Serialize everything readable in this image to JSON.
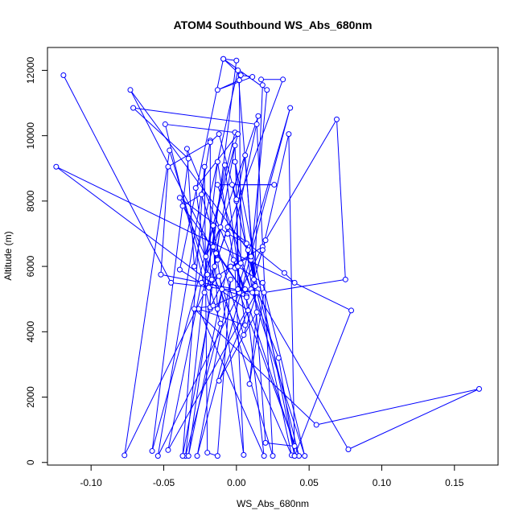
{
  "chart_data": {
    "type": "line",
    "title": "ATOM4 Southbound WS_Abs_680nm",
    "xlabel": "WS_Abs_680nm",
    "ylabel": "Altitude (m)",
    "xlim": [
      -0.13,
      0.18
    ],
    "ylim": [
      -80,
      12700
    ],
    "x_ticks": [
      -0.1,
      -0.05,
      0.0,
      0.05,
      0.1,
      0.15
    ],
    "x_tick_labels": [
      "-0.10",
      "-0.05",
      "0.00",
      "0.05",
      "0.10",
      "0.15"
    ],
    "y_ticks": [
      0,
      2000,
      4000,
      6000,
      8000,
      10000,
      12000
    ],
    "y_tick_labels": [
      "0",
      "2000",
      "4000",
      "6000",
      "8000",
      "10000",
      "12000"
    ],
    "grid": false,
    "line_color": "#0000ff",
    "marker": "open-circle",
    "series": [
      {
        "points": [
          [
            -0.119,
            11850
          ],
          [
            -0.045,
            5500
          ],
          [
            0.012,
            5200
          ],
          [
            0.018,
            11550
          ],
          [
            0.017,
            11720
          ],
          [
            0.032,
            11720
          ],
          [
            -0.022,
            5200
          ],
          [
            -0.077,
            220
          ],
          [
            -0.046,
            9550
          ],
          [
            -0.011,
            4250
          ],
          [
            -0.035,
            200
          ],
          [
            -0.013,
            9200
          ],
          [
            -0.001,
            5950
          ],
          [
            0.005,
            230
          ],
          [
            -0.013,
            6200
          ],
          [
            -0.073,
            11400
          ],
          [
            0.008,
            6500
          ],
          [
            0.038,
            220
          ],
          [
            -0.039,
            8100
          ],
          [
            -0.006,
            7000
          ],
          [
            0.007,
            6700
          ],
          [
            0.015,
            5300
          ],
          [
            -0.047,
            380
          ],
          [
            -0.024,
            5500
          ],
          [
            0.015,
            10600
          ],
          [
            -0.033,
            200
          ],
          [
            -0.011,
            7200
          ],
          [
            -0.021,
            6300
          ],
          [
            -0.001,
            10100
          ],
          [
            -0.049,
            10350
          ],
          [
            -0.018,
            4700
          ],
          [
            -0.018,
            9850
          ],
          [
            -0.054,
            200
          ],
          [
            0.018,
            6600
          ],
          [
            -0.017,
            5600
          ],
          [
            -0.014,
            6400
          ],
          [
            -0.001,
            9700
          ],
          [
            0.002,
            5200
          ],
          [
            0.043,
            200
          ],
          [
            0.01,
            6200
          ],
          [
            0.021,
            11400
          ],
          [
            -0.009,
            12350
          ],
          [
            -0.039,
            5900
          ],
          [
            -0.019,
            5350
          ],
          [
            -0.012,
            5700
          ],
          [
            0.025,
            200
          ],
          [
            0.014,
            10350
          ],
          [
            -0.071,
            10850
          ],
          [
            -0.033,
            9300
          ],
          [
            -0.058,
            350
          ],
          [
            0.001,
            10050
          ],
          [
            -0.028,
            8400
          ],
          [
            -0.02,
            5750
          ],
          [
            -0.008,
            9100
          ],
          [
            0.006,
            4200
          ],
          [
            -0.026,
            4700
          ],
          [
            0.019,
            200
          ],
          [
            0.006,
            5300
          ],
          [
            -0.034,
            9600
          ],
          [
            -0.029,
            6000
          ],
          [
            0.001,
            12000
          ],
          [
            0.013,
            5400
          ],
          [
            0.01,
            6300
          ],
          [
            -0.004,
            6000
          ],
          [
            -0.018,
            4750
          ],
          [
            -0.037,
            200
          ],
          [
            -0.022,
            9050
          ],
          [
            -0.02,
            300
          ],
          [
            -0.013,
            200
          ],
          [
            -0.004,
            5600
          ],
          [
            -0.027,
            200
          ],
          [
            0.037,
            10850
          ],
          [
            0.001,
            5300
          ],
          [
            0.0,
            8000
          ],
          [
            0.001,
            6000
          ],
          [
            0.018,
            5500
          ],
          [
            0.047,
            200
          ],
          [
            -0.013,
            8500
          ],
          [
            0.026,
            8500
          ],
          [
            -0.003,
            8500
          ],
          [
            0.012,
            5600
          ],
          [
            0.02,
            6800
          ],
          [
            0.069,
            10500
          ],
          [
            0.075,
            5600
          ],
          [
            0.019,
            5200
          ],
          [
            0.009,
            2400
          ],
          [
            0.014,
            4600
          ],
          [
            -0.012,
            2500
          ],
          [
            0.008,
            4650
          ],
          [
            -0.124,
            9050
          ],
          [
            0.079,
            4650
          ],
          [
            0.04,
            200
          ],
          [
            0.036,
            10050
          ],
          [
            0.018,
            6500
          ],
          [
            0.01,
            5300
          ],
          [
            -0.016,
            4800
          ],
          [
            -0.029,
            4700
          ],
          [
            0.055,
            1150
          ],
          [
            0.167,
            2250
          ],
          [
            0.077,
            400
          ],
          [
            0.014,
            5200
          ],
          [
            0.005,
            3900
          ],
          [
            -0.024,
            8200
          ],
          [
            -0.037,
            7850
          ],
          [
            0.007,
            5100
          ],
          [
            -0.016,
            6600
          ],
          [
            0.0,
            12300
          ],
          [
            -0.009,
            12350
          ],
          [
            0.003,
            11850
          ],
          [
            0.011,
            11800
          ],
          [
            -0.013,
            11400
          ],
          [
            0.002,
            11700
          ],
          [
            0.003,
            6100
          ],
          [
            0.029,
            3200
          ],
          [
            0.04,
            200
          ],
          [
            -0.001,
            9200
          ],
          [
            0.011,
            5200
          ],
          [
            -0.052,
            5750
          ],
          [
            -0.047,
            9050
          ],
          [
            -0.018,
            9800
          ],
          [
            -0.012,
            10050
          ],
          [
            0.0,
            8050
          ],
          [
            0.006,
            9400
          ],
          [
            0.02,
            600
          ],
          [
            0.04,
            500
          ],
          [
            -0.002,
            6200
          ],
          [
            0.007,
            5050
          ],
          [
            -0.01,
            5300
          ],
          [
            -0.013,
            4700
          ],
          [
            -0.016,
            7250
          ],
          [
            -0.015,
            6000
          ],
          [
            -0.006,
            7200
          ],
          [
            0.033,
            5800
          ],
          [
            0.04,
            5500
          ]
        ]
      }
    ]
  }
}
